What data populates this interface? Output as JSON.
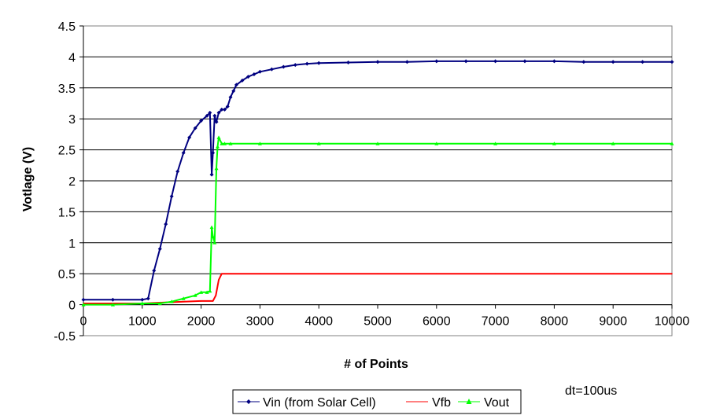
{
  "chart_data": {
    "type": "line",
    "title": "",
    "xlabel": "# of Points",
    "ylabel": "Votlage (V)",
    "xlim": [
      0,
      10000
    ],
    "ylim": [
      -0.5,
      4.5
    ],
    "xticks": [
      0,
      1000,
      2000,
      3000,
      4000,
      5000,
      6000,
      7000,
      8000,
      9000,
      10000
    ],
    "yticks": [
      -0.5,
      0,
      0.5,
      1,
      1.5,
      2,
      2.5,
      3,
      3.5,
      4,
      4.5
    ],
    "grid": "horizontal",
    "legend_position": "bottom",
    "annotation": "dt=100us",
    "series": [
      {
        "name": "Vin (from Solar Cell)",
        "color": "#000080",
        "marker": "diamond",
        "x": [
          0,
          500,
          1000,
          1100,
          1200,
          1300,
          1400,
          1500,
          1600,
          1700,
          1800,
          1900,
          2000,
          2100,
          2150,
          2180,
          2200,
          2230,
          2260,
          2300,
          2350,
          2400,
          2450,
          2500,
          2550,
          2600,
          2700,
          2800,
          2900,
          3000,
          3200,
          3400,
          3600,
          3800,
          4000,
          4500,
          5000,
          5500,
          6000,
          6500,
          7000,
          7500,
          8000,
          8500,
          9000,
          9500,
          10000
        ],
        "y": [
          0.08,
          0.08,
          0.08,
          0.1,
          0.55,
          0.9,
          1.3,
          1.75,
          2.15,
          2.45,
          2.7,
          2.85,
          2.97,
          3.05,
          3.1,
          2.1,
          2.45,
          3.05,
          2.95,
          3.1,
          3.15,
          3.15,
          3.2,
          3.35,
          3.45,
          3.55,
          3.62,
          3.68,
          3.72,
          3.76,
          3.8,
          3.84,
          3.87,
          3.89,
          3.9,
          3.91,
          3.92,
          3.92,
          3.93,
          3.93,
          3.93,
          3.93,
          3.93,
          3.92,
          3.92,
          3.92,
          3.92
        ]
      },
      {
        "name": "Vfb",
        "color": "#ff0000",
        "marker": "none",
        "x": [
          0,
          1000,
          1500,
          2000,
          2200,
          2250,
          2300,
          2350,
          2400,
          2500,
          3000,
          4000,
          5000,
          6000,
          7000,
          8000,
          9000,
          10000
        ],
        "y": [
          0.02,
          0.02,
          0.04,
          0.06,
          0.06,
          0.15,
          0.4,
          0.5,
          0.5,
          0.5,
          0.5,
          0.5,
          0.5,
          0.5,
          0.5,
          0.5,
          0.5,
          0.5
        ]
      },
      {
        "name": "Vout",
        "color": "#00ff00",
        "marker": "triangle",
        "x": [
          0,
          500,
          1000,
          1300,
          1500,
          1700,
          1900,
          2000,
          2100,
          2150,
          2180,
          2200,
          2230,
          2260,
          2280,
          2300,
          2350,
          2400,
          2500,
          3000,
          4000,
          5000,
          6000,
          7000,
          8000,
          9000,
          10000
        ],
        "y": [
          0.0,
          0.0,
          0.02,
          0.02,
          0.05,
          0.1,
          0.15,
          0.2,
          0.2,
          0.22,
          1.25,
          1.1,
          1.0,
          2.2,
          2.55,
          2.7,
          2.6,
          2.6,
          2.6,
          2.6,
          2.6,
          2.6,
          2.6,
          2.6,
          2.6,
          2.6,
          2.6
        ]
      }
    ]
  }
}
